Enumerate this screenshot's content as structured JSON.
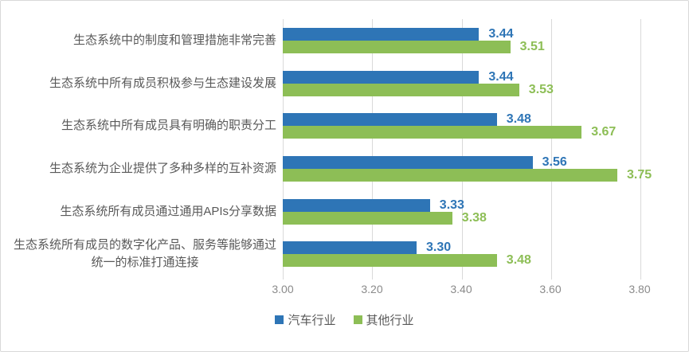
{
  "chart_data": {
    "type": "bar",
    "orientation": "horizontal",
    "title": "",
    "categories": [
      "生态系统中的制度和管理措施非常完善",
      "生态系统中所有成员积极参与生态建设发展",
      "生态系统中所有成员具有明确的职责分工",
      "生态系统为企业提供了多种多样的互补资源",
      "生态系统所有成员通过通用APIs分享数据",
      "生态系统所有成员的数字化产品、服务等能够通过\n统一的标准打通连接"
    ],
    "series": [
      {
        "name": "汽车行业",
        "color": "#2e75b6",
        "values": [
          3.44,
          3.44,
          3.48,
          3.56,
          3.33,
          3.3
        ]
      },
      {
        "name": "其他行业",
        "color": "#8dbe56",
        "values": [
          3.51,
          3.53,
          3.67,
          3.75,
          3.38,
          3.48
        ]
      }
    ],
    "xlim": [
      3.0,
      3.8
    ],
    "x_ticks": [
      "3.00",
      "3.20",
      "3.40",
      "3.60",
      "3.80"
    ],
    "value_label_decimals": 2,
    "grid": true,
    "legend_position": "bottom"
  },
  "colors": {
    "border": "#d9d9d9",
    "gridline": "#d9d9d9",
    "category_text": "#595959",
    "axis_text": "#8a8a8a",
    "background": "#ffffff"
  }
}
